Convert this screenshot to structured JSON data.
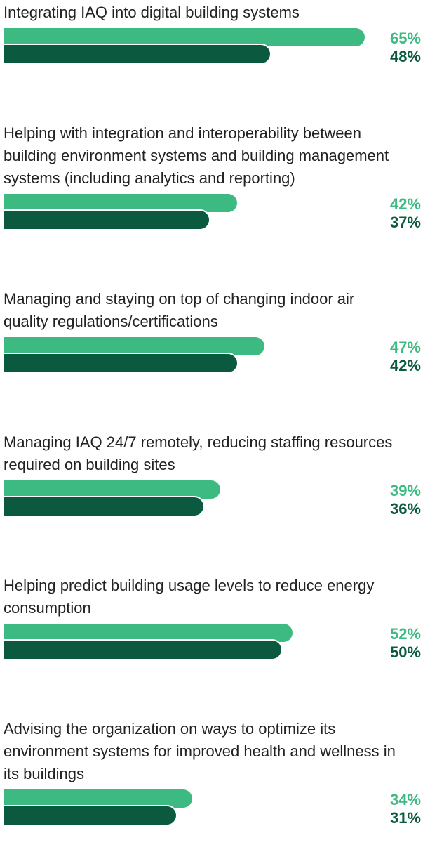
{
  "chart_data": {
    "type": "bar",
    "orientation": "horizontal",
    "categories": [
      "Integrating IAQ into digital building systems",
      "Helping with integration and interoperability between building environment systems and building management systems (including analytics and reporting)",
      "Managing and staying on top of changing indoor air quality regulations/certifications",
      "Managing IAQ 24/7 remotely, reducing staffing resources required on building sites",
      "Helping predict building usage levels to reduce energy consumption",
      "Advising the organization on ways to optimize its environment systems for improved health and wellness in its buildings"
    ],
    "series": [
      {
        "color": "#3dba82",
        "values": [
          65,
          42,
          47,
          39,
          52,
          34
        ],
        "value_labels": [
          "65%",
          "42%",
          "47%",
          "39%",
          "52%",
          "34%"
        ]
      },
      {
        "color": "#0b5a3f",
        "values": [
          48,
          37,
          42,
          36,
          50,
          31
        ],
        "value_labels": [
          "48%",
          "37%",
          "42%",
          "36%",
          "50%",
          "31%"
        ]
      }
    ]
  }
}
